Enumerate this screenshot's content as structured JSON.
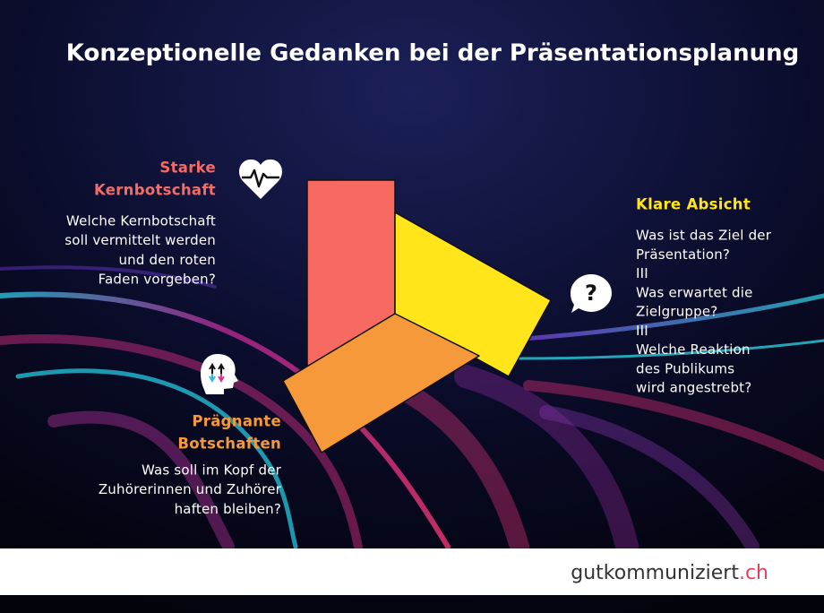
{
  "title": "Konzeptionelle Gedanken bei der Präsentationsplanung",
  "sections": [
    {
      "heading": [
        "Starke",
        "Kernbotschaft"
      ],
      "body": [
        "Welche Kernbotschaft",
        "soll vermittelt werden",
        "und den roten",
        "Faden vorgeben?"
      ]
    },
    {
      "heading": [
        "Klare Absicht"
      ],
      "body": [
        "Was ist das Ziel der",
        "Präsentation?",
        "III",
        "Was erwartet die",
        "Zielgruppe?",
        "III",
        "Welche Reaktion",
        "des Publikums",
        "wird angestrebt?"
      ]
    },
    {
      "heading": [
        "Prägnante",
        "Botschaften"
      ],
      "body": [
        "Was soll im Kopf der",
        "Zuhörerinnen und Zuhörer",
        "haften bleiben?"
      ]
    }
  ],
  "question_icon": "?",
  "footer": {
    "brand": "gutkommuniziert",
    "domain": ".ch"
  }
}
